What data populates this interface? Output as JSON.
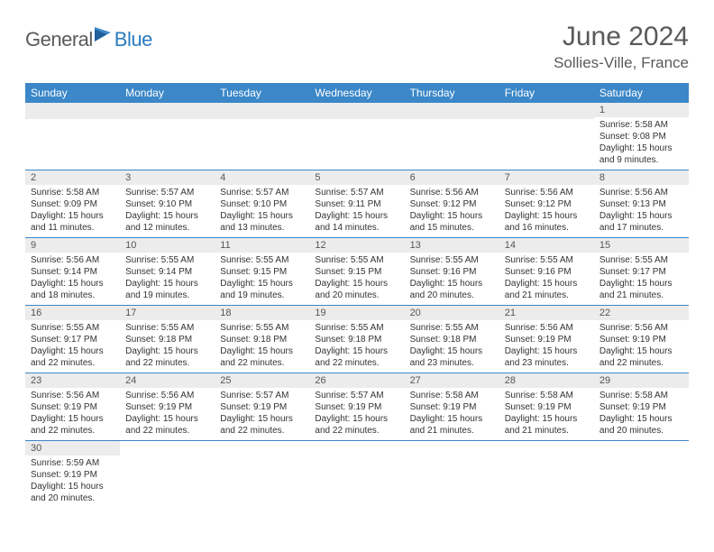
{
  "logo": {
    "part1": "General",
    "part2": "Blue"
  },
  "title": "June 2024",
  "location": "Sollies-Ville, France",
  "colors": {
    "header_bg": "#3b87c8",
    "header_fg": "#ffffff",
    "band_bg": "#ececec",
    "border": "#3b87c8",
    "logo_gray": "#5a5a5a",
    "logo_blue": "#2b7bbf"
  },
  "day_headers": [
    "Sunday",
    "Monday",
    "Tuesday",
    "Wednesday",
    "Thursday",
    "Friday",
    "Saturday"
  ],
  "weeks": [
    [
      null,
      null,
      null,
      null,
      null,
      null,
      {
        "n": "1",
        "sr": "5:58 AM",
        "ss": "9:08 PM",
        "dl": "15 hours and 9 minutes."
      }
    ],
    [
      {
        "n": "2",
        "sr": "5:58 AM",
        "ss": "9:09 PM",
        "dl": "15 hours and 11 minutes."
      },
      {
        "n": "3",
        "sr": "5:57 AM",
        "ss": "9:10 PM",
        "dl": "15 hours and 12 minutes."
      },
      {
        "n": "4",
        "sr": "5:57 AM",
        "ss": "9:10 PM",
        "dl": "15 hours and 13 minutes."
      },
      {
        "n": "5",
        "sr": "5:57 AM",
        "ss": "9:11 PM",
        "dl": "15 hours and 14 minutes."
      },
      {
        "n": "6",
        "sr": "5:56 AM",
        "ss": "9:12 PM",
        "dl": "15 hours and 15 minutes."
      },
      {
        "n": "7",
        "sr": "5:56 AM",
        "ss": "9:12 PM",
        "dl": "15 hours and 16 minutes."
      },
      {
        "n": "8",
        "sr": "5:56 AM",
        "ss": "9:13 PM",
        "dl": "15 hours and 17 minutes."
      }
    ],
    [
      {
        "n": "9",
        "sr": "5:56 AM",
        "ss": "9:14 PM",
        "dl": "15 hours and 18 minutes."
      },
      {
        "n": "10",
        "sr": "5:55 AM",
        "ss": "9:14 PM",
        "dl": "15 hours and 19 minutes."
      },
      {
        "n": "11",
        "sr": "5:55 AM",
        "ss": "9:15 PM",
        "dl": "15 hours and 19 minutes."
      },
      {
        "n": "12",
        "sr": "5:55 AM",
        "ss": "9:15 PM",
        "dl": "15 hours and 20 minutes."
      },
      {
        "n": "13",
        "sr": "5:55 AM",
        "ss": "9:16 PM",
        "dl": "15 hours and 20 minutes."
      },
      {
        "n": "14",
        "sr": "5:55 AM",
        "ss": "9:16 PM",
        "dl": "15 hours and 21 minutes."
      },
      {
        "n": "15",
        "sr": "5:55 AM",
        "ss": "9:17 PM",
        "dl": "15 hours and 21 minutes."
      }
    ],
    [
      {
        "n": "16",
        "sr": "5:55 AM",
        "ss": "9:17 PM",
        "dl": "15 hours and 22 minutes."
      },
      {
        "n": "17",
        "sr": "5:55 AM",
        "ss": "9:18 PM",
        "dl": "15 hours and 22 minutes."
      },
      {
        "n": "18",
        "sr": "5:55 AM",
        "ss": "9:18 PM",
        "dl": "15 hours and 22 minutes."
      },
      {
        "n": "19",
        "sr": "5:55 AM",
        "ss": "9:18 PM",
        "dl": "15 hours and 22 minutes."
      },
      {
        "n": "20",
        "sr": "5:55 AM",
        "ss": "9:18 PM",
        "dl": "15 hours and 23 minutes."
      },
      {
        "n": "21",
        "sr": "5:56 AM",
        "ss": "9:19 PM",
        "dl": "15 hours and 23 minutes."
      },
      {
        "n": "22",
        "sr": "5:56 AM",
        "ss": "9:19 PM",
        "dl": "15 hours and 22 minutes."
      }
    ],
    [
      {
        "n": "23",
        "sr": "5:56 AM",
        "ss": "9:19 PM",
        "dl": "15 hours and 22 minutes."
      },
      {
        "n": "24",
        "sr": "5:56 AM",
        "ss": "9:19 PM",
        "dl": "15 hours and 22 minutes."
      },
      {
        "n": "25",
        "sr": "5:57 AM",
        "ss": "9:19 PM",
        "dl": "15 hours and 22 minutes."
      },
      {
        "n": "26",
        "sr": "5:57 AM",
        "ss": "9:19 PM",
        "dl": "15 hours and 22 minutes."
      },
      {
        "n": "27",
        "sr": "5:58 AM",
        "ss": "9:19 PM",
        "dl": "15 hours and 21 minutes."
      },
      {
        "n": "28",
        "sr": "5:58 AM",
        "ss": "9:19 PM",
        "dl": "15 hours and 21 minutes."
      },
      {
        "n": "29",
        "sr": "5:58 AM",
        "ss": "9:19 PM",
        "dl": "15 hours and 20 minutes."
      }
    ],
    [
      {
        "n": "30",
        "sr": "5:59 AM",
        "ss": "9:19 PM",
        "dl": "15 hours and 20 minutes."
      },
      null,
      null,
      null,
      null,
      null,
      null
    ]
  ],
  "labels": {
    "sunrise": "Sunrise:",
    "sunset": "Sunset:",
    "daylight": "Daylight:"
  }
}
